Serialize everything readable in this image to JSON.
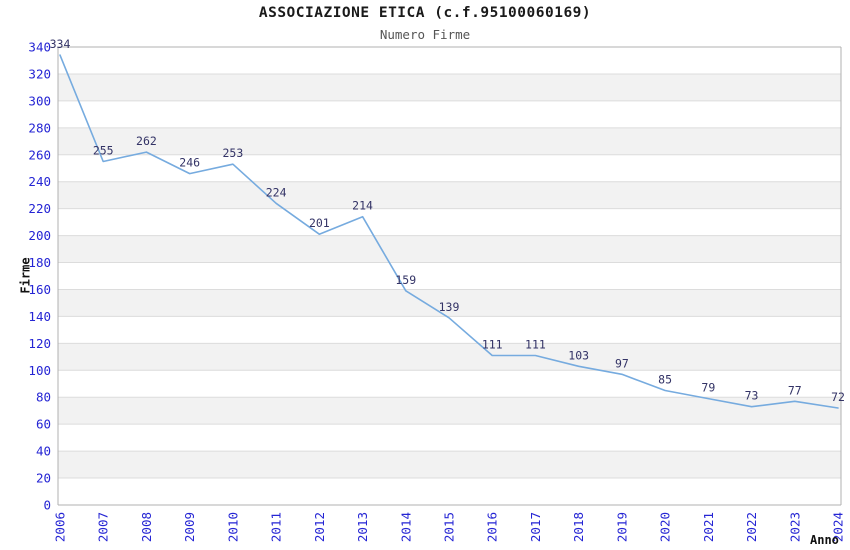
{
  "header": {
    "title": "ASSOCIAZIONE ETICA (c.f.95100060169)",
    "subtitle": "Numero Firme"
  },
  "axes": {
    "y_label": "Firme",
    "x_label": "Anno"
  },
  "chart_data": {
    "type": "line",
    "title": "ASSOCIAZIONE ETICA (c.f.95100060169)",
    "subtitle": "Numero Firme",
    "xlabel": "Anno",
    "ylabel": "Firme",
    "categories": [
      "2006",
      "2007",
      "2008",
      "2009",
      "2010",
      "2011",
      "2012",
      "2013",
      "2014",
      "2015",
      "2016",
      "2017",
      "2018",
      "2019",
      "2020",
      "2021",
      "2022",
      "2023",
      "2024"
    ],
    "series": [
      {
        "name": "Numero Firme",
        "values": [
          334,
          255,
          262,
          246,
          253,
          224,
          201,
          214,
          159,
          139,
          111,
          111,
          103,
          97,
          85,
          79,
          73,
          77,
          72
        ]
      }
    ],
    "ylim": [
      0,
      340
    ],
    "ytick_step": 20,
    "grid": "horizontal-bands-alternating",
    "legend": "none",
    "show_point_labels": true,
    "colors": {
      "line": "#76abdf",
      "point_label": "#333366",
      "axis_tick_label": "#2525d4",
      "band_fill": "#f2f2f2",
      "gridline": "#dcdcdc",
      "frame": "#b0b0b0",
      "title": "#1a1a1a",
      "subtitle": "#555555"
    }
  }
}
